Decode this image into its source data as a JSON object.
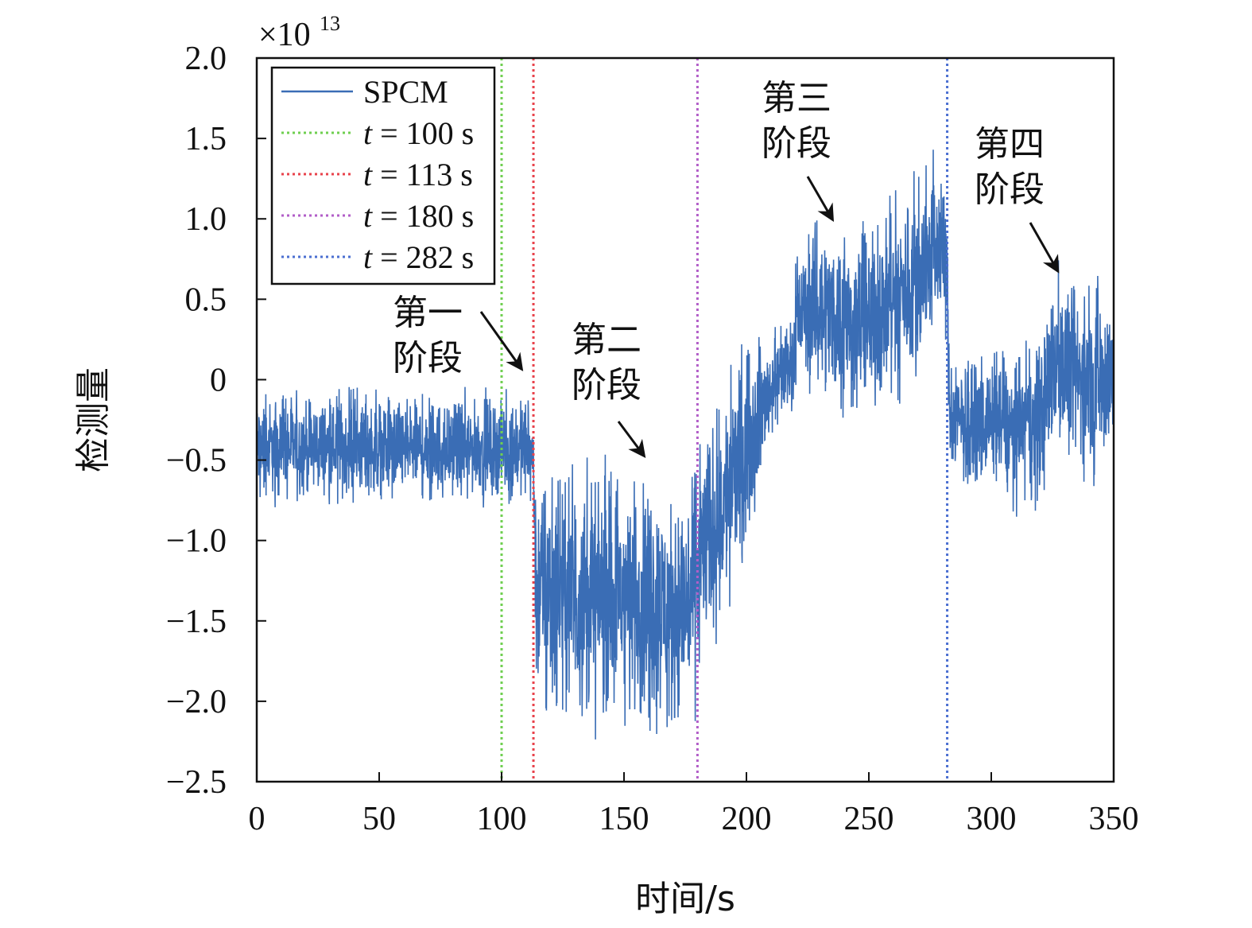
{
  "chart_data": {
    "type": "line",
    "title": "",
    "xlabel": "时间/s",
    "ylabel": "检测量",
    "y_multiplier": "×10",
    "y_multiplier_exponent": "13",
    "xlim": [
      0,
      350
    ],
    "ylim": [
      -2.5,
      2.0
    ],
    "x_ticks": [
      0,
      50,
      100,
      150,
      200,
      250,
      300,
      350
    ],
    "x_tick_labels": [
      "0",
      "50",
      "100",
      "150",
      "200",
      "250",
      "300",
      "350"
    ],
    "y_ticks": [
      -2.5,
      -2.0,
      -1.5,
      -1.0,
      -0.5,
      0,
      0.5,
      1.0,
      1.5,
      2.0
    ],
    "y_tick_labels": [
      "−2.5",
      "−2.0",
      "−1.5",
      "−1.0",
      "−0.5",
      "0",
      "0.5",
      "1.0",
      "1.5",
      "2.0"
    ],
    "grid": false,
    "legend_position": "top-left",
    "series": [
      {
        "name": "SPCM",
        "color": "#3a6db5",
        "style": "solid",
        "envelope": {
          "x": [
            0,
            50,
            100,
            110,
            113,
            114,
            130,
            150,
            160,
            170,
            178,
            180,
            185,
            190,
            200,
            210,
            215,
            219,
            220,
            230,
            240,
            250,
            260,
            270,
            280,
            282,
            283,
            290,
            300,
            310,
            320,
            325,
            330,
            340,
            350
          ],
          "upper": [
            -0.12,
            -0.12,
            -0.12,
            -0.12,
            -0.2,
            -0.6,
            -0.65,
            -0.62,
            -0.65,
            -0.78,
            -0.6,
            -0.45,
            -0.3,
            -0.15,
            0.15,
            0.25,
            0.28,
            0.32,
            0.7,
            0.95,
            0.88,
            0.9,
            1.05,
            1.2,
            1.38,
            0.9,
            0.05,
            0.1,
            0.08,
            0.12,
            0.25,
            0.62,
            0.6,
            0.5,
            0.62
          ],
          "lower": [
            -0.72,
            -0.72,
            -0.72,
            -0.72,
            -0.8,
            -1.95,
            -2.1,
            -2.05,
            -2.05,
            -2.1,
            -2.1,
            -1.85,
            -1.6,
            -1.45,
            -0.95,
            -0.35,
            -0.2,
            -0.15,
            0.05,
            -0.05,
            -0.15,
            -0.2,
            -0.05,
            0.05,
            0.4,
            0.2,
            -0.55,
            -0.65,
            -0.6,
            -0.75,
            -0.75,
            -0.45,
            -0.45,
            -0.55,
            -0.55
          ]
        }
      }
    ],
    "vertical_lines": [
      {
        "label": "t = 100 s",
        "x": 100,
        "color": "#6fcf50",
        "style": "dotted"
      },
      {
        "label": "t = 113 s",
        "x": 113,
        "color": "#e8424b",
        "style": "dotted"
      },
      {
        "label": "t = 180 s",
        "x": 180,
        "color": "#b25ec8",
        "style": "dotted"
      },
      {
        "label": "t = 282 s",
        "x": 282,
        "color": "#4b6fd1",
        "style": "dotted"
      }
    ],
    "annotations": [
      {
        "text_line1": "第一",
        "text_line2": "阶段",
        "target_x": 108,
        "target_y": 0.07
      },
      {
        "text_line1": "第二",
        "text_line2": "阶段",
        "target_x": 158,
        "target_y": -0.47
      },
      {
        "text_line1": "第三",
        "text_line2": "阶段",
        "target_x": 235,
        "target_y": 1.0
      },
      {
        "text_line1": "第四",
        "text_line2": "阶段",
        "target_x": 327,
        "target_y": 0.68
      }
    ]
  }
}
